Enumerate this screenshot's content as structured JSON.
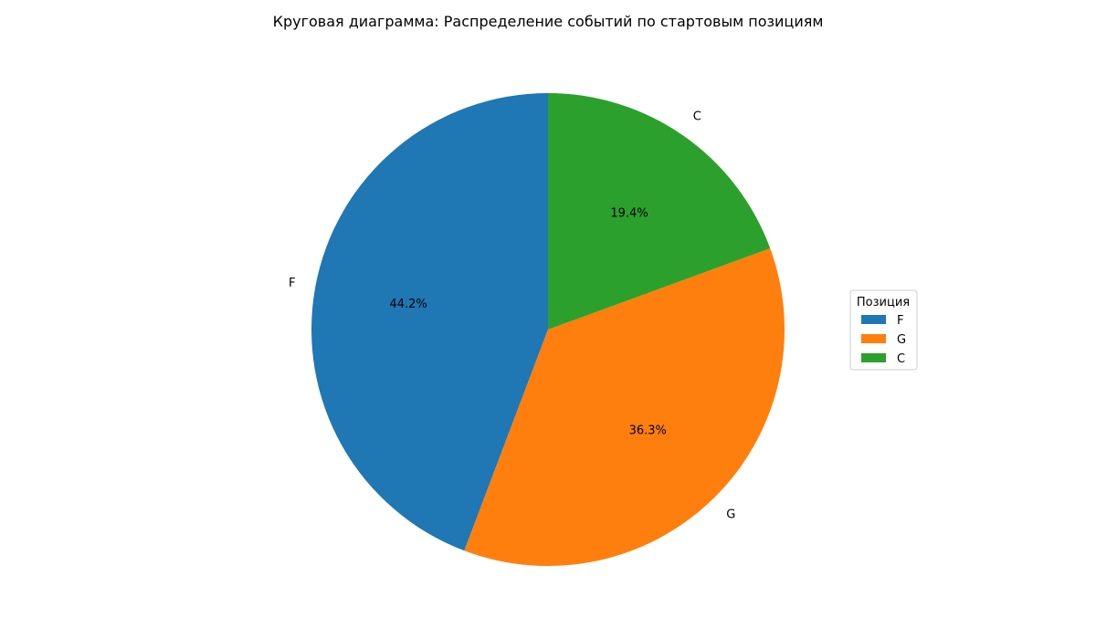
{
  "chart_data": {
    "type": "pie",
    "title": "Круговая диаграмма: Распределение событий по стартовым позициям",
    "categories": [
      "F",
      "G",
      "C"
    ],
    "values": [
      44.2,
      36.3,
      19.4
    ],
    "percent_labels": [
      "44.2%",
      "36.3%",
      "19.4%"
    ],
    "colors": [
      "#1f77b4",
      "#ff7f0e",
      "#2ca02c"
    ],
    "start_angle_deg": 90,
    "direction": "counterclockwise",
    "legend": {
      "title": "Позиция",
      "placement": "center-right",
      "entries": [
        "F",
        "G",
        "C"
      ]
    }
  }
}
